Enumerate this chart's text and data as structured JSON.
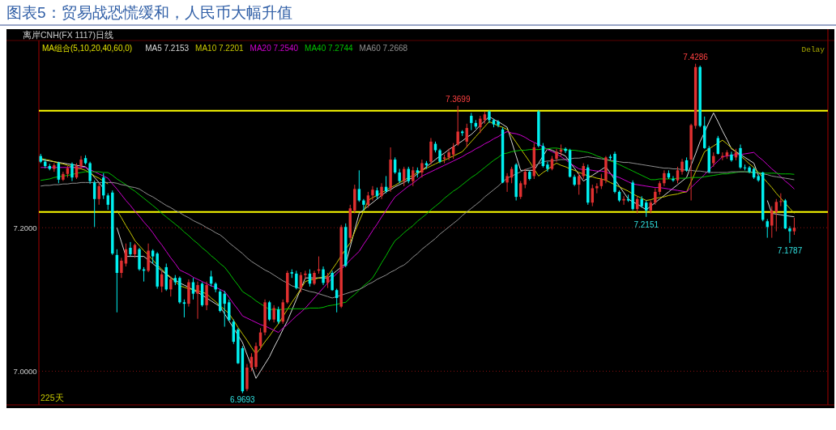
{
  "chart_data": {
    "type": "candlestick",
    "title": "图表5：贸易战恐慌缓和，人民币大幅升值",
    "subtitle": "离岸CNH(FX 1117)",
    "legend_title": "MA组合(5,10,20,40,60,0)",
    "annotations": [
      "日线",
      "Delay",
      "225天",
      {
        "text": "7.4286",
        "y": 7.4286
      },
      {
        "text": "7.3699",
        "y": 7.3699
      },
      {
        "text": "7.2151",
        "y": 7.2151
      },
      {
        "text": "7.1787",
        "y": 7.1787
      },
      {
        "text": "6.9693",
        "y": 6.9693
      }
    ],
    "ylim": [
      6.953,
      7.461
    ],
    "yticks": [
      {
        "value": 7.0,
        "label": "7.0000"
      },
      {
        "value": 7.2,
        "label": "7.2000"
      }
    ],
    "grid": "y",
    "tick_labels": "y",
    "ref_lines": [
      {
        "axis": "y",
        "value": 7.363,
        "color": "#ffff00"
      },
      {
        "axis": "y",
        "value": 7.222,
        "color": "#ffff00"
      }
    ],
    "categories": [
      null,
      null,
      null,
      null,
      null,
      null,
      null,
      null,
      null,
      null,
      null,
      null,
      null,
      null,
      null,
      null,
      null,
      null,
      null,
      null,
      null,
      null,
      null,
      null,
      null,
      null,
      null,
      null,
      null,
      null,
      null,
      null,
      null,
      null,
      null,
      null,
      null,
      null,
      null,
      null,
      null,
      null,
      null,
      null,
      null,
      null,
      null,
      null,
      null,
      null,
      null,
      null,
      null,
      null,
      null,
      null,
      null,
      null,
      null,
      null,
      null,
      null,
      null,
      null,
      null,
      null,
      null,
      null,
      null,
      null,
      null,
      null,
      null,
      null,
      null,
      null,
      null,
      null,
      null,
      null,
      null,
      null,
      null,
      null,
      null,
      null,
      null,
      null,
      null,
      null,
      null,
      null,
      null,
      null,
      null,
      null,
      null,
      null,
      null,
      null,
      null,
      null,
      null,
      null,
      null,
      null,
      null,
      null,
      null,
      null,
      null,
      null,
      null,
      null,
      null,
      null,
      null,
      null,
      null,
      null,
      null,
      null,
      null,
      null,
      null,
      null,
      null,
      null,
      null,
      null,
      null,
      null,
      null,
      null,
      null,
      null,
      null,
      null,
      null,
      null,
      null,
      null,
      null,
      null,
      null,
      null,
      null,
      null,
      null,
      null,
      null,
      null,
      null,
      null,
      null,
      null,
      null,
      null,
      null,
      null,
      null,
      null,
      null,
      null,
      null,
      null,
      null,
      null,
      null
    ],
    "ohlc": [
      [
        7.3,
        7.303,
        7.29,
        7.292
      ],
      [
        7.292,
        7.296,
        7.283,
        7.286
      ],
      [
        7.286,
        7.289,
        7.28,
        7.282
      ],
      [
        7.282,
        7.29,
        7.278,
        7.287
      ],
      [
        7.29,
        7.292,
        7.262,
        7.267
      ],
      [
        7.267,
        7.278,
        7.265,
        7.275
      ],
      [
        7.275,
        7.286,
        7.27,
        7.283
      ],
      [
        7.289,
        7.291,
        7.265,
        7.27
      ],
      [
        7.27,
        7.29,
        7.268,
        7.286
      ],
      [
        7.286,
        7.3,
        7.282,
        7.295
      ],
      [
        7.297,
        7.301,
        7.288,
        7.29
      ],
      [
        7.29,
        7.292,
        7.261,
        7.265
      ],
      [
        7.263,
        7.266,
        7.201,
        7.24
      ],
      [
        7.24,
        7.262,
        7.232,
        7.258
      ],
      [
        7.27,
        7.276,
        7.24,
        7.245
      ],
      [
        7.245,
        7.248,
        7.225,
        7.232
      ],
      [
        7.249,
        7.252,
        7.162,
        7.164
      ],
      [
        7.162,
        7.17,
        7.082,
        7.137
      ],
      [
        7.137,
        7.158,
        7.13,
        7.154
      ],
      [
        7.15,
        7.178,
        7.146,
        7.17
      ],
      [
        7.172,
        7.18,
        7.16,
        7.163
      ],
      [
        7.163,
        7.178,
        7.158,
        7.176
      ],
      [
        7.17,
        7.172,
        7.14,
        7.142
      ],
      [
        7.142,
        7.145,
        7.125,
        7.14
      ],
      [
        7.14,
        7.178,
        7.138,
        7.168
      ],
      [
        7.168,
        7.17,
        7.15,
        7.16
      ],
      [
        7.164,
        7.166,
        7.115,
        7.118
      ],
      [
        7.118,
        7.14,
        7.11,
        7.135
      ],
      [
        7.145,
        7.15,
        7.112,
        7.114
      ],
      [
        7.114,
        7.132,
        7.104,
        7.128
      ],
      [
        7.13,
        7.134,
        7.12,
        7.124
      ],
      [
        7.13,
        7.132,
        7.094,
        7.096
      ],
      [
        7.096,
        7.1,
        7.075,
        7.094
      ],
      [
        7.094,
        7.128,
        7.09,
        7.124
      ],
      [
        7.124,
        7.13,
        7.1,
        7.108
      ],
      [
        7.108,
        7.125,
        7.073,
        7.12
      ],
      [
        7.122,
        7.124,
        7.09,
        7.092
      ],
      [
        7.092,
        7.125,
        7.085,
        7.12
      ],
      [
        7.132,
        7.14,
        7.118,
        7.122
      ],
      [
        7.122,
        7.124,
        7.11,
        7.114
      ],
      [
        7.111,
        7.114,
        7.082,
        7.084
      ],
      [
        7.108,
        7.112,
        7.062,
        7.094
      ],
      [
        7.096,
        7.1,
        7.07,
        7.071
      ],
      [
        7.069,
        7.072,
        7.038,
        7.041
      ],
      [
        7.058,
        7.06,
        7.01,
        7.011
      ],
      [
        7.032,
        7.035,
        6.9693,
        6.972
      ],
      [
        6.975,
        7.01,
        6.972,
        7.005
      ],
      [
        7.005,
        7.025,
        7.0,
        7.02
      ],
      [
        7.006,
        7.04,
        7.003,
        7.035
      ],
      [
        7.035,
        7.06,
        7.03,
        7.054
      ],
      [
        7.054,
        7.1,
        7.05,
        7.096
      ],
      [
        7.096,
        7.098,
        7.07,
        7.072
      ],
      [
        7.072,
        7.092,
        7.068,
        7.088
      ],
      [
        7.086,
        7.09,
        7.066,
        7.069
      ],
      [
        7.069,
        7.1,
        7.066,
        7.096
      ],
      [
        7.096,
        7.14,
        7.094,
        7.137
      ],
      [
        7.138,
        7.142,
        7.13,
        7.136
      ],
      [
        7.136,
        7.14,
        7.114,
        7.116
      ],
      [
        7.116,
        7.138,
        7.11,
        7.134
      ],
      [
        7.134,
        7.14,
        7.128,
        7.136
      ],
      [
        7.136,
        7.142,
        7.118,
        7.122
      ],
      [
        7.122,
        7.14,
        7.12,
        7.137
      ],
      [
        7.14,
        7.16,
        7.136,
        7.142
      ],
      [
        7.142,
        7.146,
        7.12,
        7.123
      ],
      [
        7.123,
        7.137,
        7.116,
        7.132
      ],
      [
        7.137,
        7.14,
        7.112,
        7.113
      ],
      [
        7.113,
        7.115,
        7.082,
        7.102
      ],
      [
        7.09,
        7.204,
        7.088,
        7.201
      ],
      [
        7.201,
        7.206,
        7.145,
        7.147
      ],
      [
        7.186,
        7.232,
        7.18,
        7.227
      ],
      [
        7.224,
        7.26,
        7.22,
        7.254
      ],
      [
        7.254,
        7.28,
        7.236,
        7.238
      ],
      [
        7.238,
        7.24,
        7.224,
        7.232
      ],
      [
        7.232,
        7.25,
        7.228,
        7.245
      ],
      [
        7.245,
        7.258,
        7.238,
        7.253
      ],
      [
        7.252,
        7.256,
        7.24,
        7.244
      ],
      [
        7.244,
        7.262,
        7.24,
        7.257
      ],
      [
        7.257,
        7.272,
        7.248,
        7.251
      ],
      [
        7.255,
        7.312,
        7.25,
        7.295
      ],
      [
        7.295,
        7.298,
        7.275,
        7.277
      ],
      [
        7.277,
        7.282,
        7.262,
        7.265
      ],
      [
        7.265,
        7.285,
        7.258,
        7.282
      ],
      [
        7.282,
        7.285,
        7.262,
        7.265
      ],
      [
        7.265,
        7.285,
        7.258,
        7.28
      ],
      [
        7.28,
        7.284,
        7.27,
        7.277
      ],
      [
        7.277,
        7.295,
        7.27,
        7.29
      ],
      [
        7.29,
        7.293,
        7.282,
        7.287
      ],
      [
        7.292,
        7.325,
        7.288,
        7.32
      ],
      [
        7.317,
        7.32,
        7.305,
        7.308
      ],
      [
        7.308,
        7.31,
        7.29,
        7.292
      ],
      [
        7.296,
        7.302,
        7.29,
        7.298
      ],
      [
        7.298,
        7.31,
        7.294,
        7.305
      ],
      [
        7.302,
        7.318,
        7.296,
        7.313
      ],
      [
        7.316,
        7.3699,
        7.314,
        7.334
      ],
      [
        7.334,
        7.336,
        7.328,
        7.332
      ],
      [
        7.32,
        7.345,
        7.312,
        7.339
      ],
      [
        7.356,
        7.36,
        7.336,
        7.346
      ],
      [
        7.346,
        7.35,
        7.338,
        7.341
      ],
      [
        7.34,
        7.356,
        7.332,
        7.352
      ],
      [
        7.35,
        7.362,
        7.345,
        7.358
      ],
      [
        7.362,
        7.364,
        7.346,
        7.35
      ],
      [
        7.35,
        7.352,
        7.34,
        7.344
      ],
      [
        7.348,
        7.35,
        7.34,
        7.343
      ],
      [
        7.337,
        7.34,
        7.262,
        7.263
      ],
      [
        7.263,
        7.276,
        7.25,
        7.272
      ],
      [
        7.27,
        7.285,
        7.262,
        7.282
      ],
      [
        7.288,
        7.29,
        7.238,
        7.243
      ],
      [
        7.243,
        7.265,
        7.24,
        7.262
      ],
      [
        7.26,
        7.282,
        7.255,
        7.278
      ],
      [
        7.278,
        7.28,
        7.266,
        7.268
      ],
      [
        7.272,
        7.318,
        7.268,
        7.312
      ],
      [
        7.362,
        7.364,
        7.312,
        7.314
      ],
      [
        7.314,
        7.318,
        7.284,
        7.286
      ],
      [
        7.288,
        7.292,
        7.278,
        7.282
      ],
      [
        7.282,
        7.3,
        7.28,
        7.296
      ],
      [
        7.296,
        7.31,
        7.292,
        7.306
      ],
      [
        7.306,
        7.316,
        7.3,
        7.309
      ],
      [
        7.31,
        7.312,
        7.304,
        7.307
      ],
      [
        7.308,
        7.31,
        7.27,
        7.271
      ],
      [
        7.271,
        7.274,
        7.258,
        7.26
      ],
      [
        7.26,
        7.276,
        7.246,
        7.272
      ],
      [
        7.272,
        7.29,
        7.268,
        7.286
      ],
      [
        7.284,
        7.288,
        7.232,
        7.235
      ],
      [
        7.235,
        7.26,
        7.23,
        7.255
      ],
      [
        7.255,
        7.262,
        7.248,
        7.258
      ],
      [
        7.258,
        7.275,
        7.254,
        7.268
      ],
      [
        7.266,
        7.3,
        7.262,
        7.298
      ],
      [
        7.299,
        7.302,
        7.294,
        7.297
      ],
      [
        7.303,
        7.306,
        7.248,
        7.25
      ],
      [
        7.25,
        7.252,
        7.236,
        7.238
      ],
      [
        7.238,
        7.244,
        7.232,
        7.24
      ],
      [
        7.24,
        7.246,
        7.236,
        7.238
      ],
      [
        7.263,
        7.266,
        7.224,
        7.226
      ],
      [
        7.226,
        7.244,
        7.22,
        7.24
      ],
      [
        7.24,
        7.244,
        7.228,
        7.23
      ],
      [
        7.235,
        7.238,
        7.2151,
        7.224
      ],
      [
        7.224,
        7.238,
        7.22,
        7.235
      ],
      [
        7.235,
        7.255,
        7.232,
        7.25
      ],
      [
        7.25,
        7.265,
        7.246,
        7.262
      ],
      [
        7.262,
        7.28,
        7.258,
        7.276
      ],
      [
        7.276,
        7.28,
        7.268,
        7.27
      ],
      [
        7.268,
        7.272,
        7.264,
        7.266
      ],
      [
        7.266,
        7.285,
        7.262,
        7.28
      ],
      [
        7.278,
        7.296,
        7.274,
        7.292
      ],
      [
        7.294,
        7.298,
        7.278,
        7.28
      ],
      [
        7.295,
        7.345,
        7.238,
        7.343
      ],
      [
        7.342,
        7.4286,
        7.338,
        7.424
      ],
      [
        7.424,
        7.426,
        7.34,
        7.342
      ],
      [
        7.342,
        7.355,
        7.31,
        7.311
      ],
      [
        7.311,
        7.314,
        7.276,
        7.278
      ],
      [
        7.29,
        7.305,
        7.285,
        7.3
      ],
      [
        7.325,
        7.328,
        7.302,
        7.303
      ],
      [
        7.298,
        7.305,
        7.294,
        7.3
      ],
      [
        7.3,
        7.308,
        7.296,
        7.305
      ],
      [
        7.302,
        7.306,
        7.292,
        7.294
      ],
      [
        7.298,
        7.31,
        7.294,
        7.305
      ],
      [
        7.311,
        7.316,
        7.282,
        7.284
      ],
      [
        7.284,
        7.288,
        7.28,
        7.283
      ],
      [
        7.284,
        7.286,
        7.276,
        7.278
      ],
      [
        7.282,
        7.284,
        7.268,
        7.27
      ],
      [
        7.272,
        7.274,
        7.264,
        7.266
      ],
      [
        7.277,
        7.278,
        7.209,
        7.211
      ],
      [
        7.209,
        7.212,
        7.186,
        7.201
      ],
      [
        7.203,
        7.23,
        7.186,
        7.224
      ],
      [
        7.222,
        7.24,
        7.195,
        7.236
      ],
      [
        7.236,
        7.248,
        7.23,
        7.237
      ],
      [
        7.238,
        7.24,
        7.198,
        7.199
      ],
      [
        7.199,
        7.202,
        7.1787,
        7.195
      ],
      [
        7.195,
        7.214,
        7.19,
        7.2
      ]
    ],
    "series": [
      {
        "type": "line",
        "name": "MA5 7.2153",
        "color": "#d8d8d8",
        "values": [
          7.295,
          7.294,
          7.293,
          7.292,
          7.291,
          7.29,
          7.289,
          7.288,
          7.287,
          7.286,
          7.285,
          7.278,
          7.27,
          7.263,
          7.255,
          null,
          null,
          7.2,
          7.18,
          7.16,
          7.16,
          7.16,
          7.16,
          7.16,
          7.155,
          7.15,
          7.145,
          7.14,
          7.135,
          7.13,
          7.127,
          7.123,
          7.12,
          7.117,
          7.113,
          7.11,
          7.106,
          7.102,
          7.098,
          7.094,
          7.09,
          7.08,
          7.07,
          7.06,
          7.05,
          7.04,
          7.023,
          7.007,
          6.99,
          7.0,
          7.01,
          7.02,
          7.033,
          7.045,
          7.058,
          7.07,
          7.085,
          7.1,
          7.115,
          7.13,
          7.13,
          7.13,
          7.13,
          7.13,
          7.13,
          7.135,
          7.14,
          7.145,
          7.15,
          7.173,
          7.197,
          7.22,
          7.225,
          7.23,
          7.235,
          7.24,
          7.245,
          7.25,
          7.253,
          7.257,
          7.26,
          7.263,
          7.267,
          7.27,
          7.275,
          7.28,
          7.285,
          7.29,
          7.295,
          7.3,
          7.304,
          7.309,
          7.313,
          7.317,
          7.321,
          7.326,
          7.33,
          7.336,
          7.343,
          7.349,
          7.355,
          7.351,
          7.348,
          7.344,
          7.34,
          7.32,
          7.3,
          7.28,
          7.28,
          7.28,
          7.28,
          7.29,
          7.3,
          7.31,
          7.308,
          7.305,
          7.303,
          7.3,
          7.291,
          7.283,
          7.274,
          7.265,
          7.269,
          7.273,
          7.277,
          7.281,
          7.285,
          7.276,
          7.267,
          7.258,
          7.249,
          7.24,
          7.236,
          7.233,
          7.229,
          7.225,
          7.23,
          7.235,
          7.24,
          7.245,
          7.25,
          7.255,
          7.26,
          7.265,
          7.27,
          7.287,
          7.303,
          7.32,
          7.333,
          7.347,
          7.36,
          7.348,
          7.335,
          7.323,
          7.31,
          7.306,
          7.302,
          7.298,
          7.294,
          7.29,
          7.273,
          null,
          7.238,
          7.22,
          7.219,
          7.218,
          7.217,
          7.216,
          7.2153
        ]
      },
      {
        "type": "line",
        "name": "MA10 7.2201",
        "color": "#c8c800",
        "values": [
          7.297,
          7.295,
          7.294,
          7.292,
          7.29,
          7.289,
          7.287,
          7.285,
          7.283,
          7.282,
          7.28,
          7.276,
          7.272,
          7.269,
          7.265,
          7.261,
          null,
          7.224,
          7.214,
          7.203,
          7.193,
          7.182,
          7.175,
          7.168,
          7.162,
          7.155,
          7.148,
          7.142,
          7.136,
          7.131,
          7.125,
          7.119,
          7.117,
          7.115,
          7.114,
          7.112,
          7.11,
          7.108,
          7.102,
          7.097,
          7.091,
          7.086,
          7.08,
          7.071,
          7.061,
          7.052,
          7.043,
          7.033,
          7.024,
          7.032,
          7.041,
          7.049,
          7.058,
          7.066,
          7.076,
          7.086,
          7.096,
          7.105,
          7.115,
          7.125,
          7.127,
          7.128,
          7.13,
          7.131,
          7.133,
          7.142,
          7.151,
          7.161,
          7.17,
          7.179,
          7.194,
          7.209,
          7.223,
          7.238,
          7.242,
          7.245,
          7.249,
          7.252,
          7.256,
          7.259,
          7.263,
          7.266,
          7.27,
          7.273,
          7.277,
          7.28,
          7.283,
          7.286,
          7.289,
          7.292,
          7.294,
          7.297,
          7.3,
          7.303,
          7.306,
          7.313,
          7.32,
          7.327,
          7.334,
          7.341,
          7.348,
          7.345,
          7.342,
          7.34,
          7.337,
          7.328,
          7.319,
          7.31,
          7.301,
          7.292,
          7.282,
          7.272,
          7.277,
          7.281,
          7.286,
          7.29,
          7.287,
          7.285,
          7.282,
          7.28,
          7.277,
          7.275,
          7.272,
          7.271,
          7.269,
          7.268,
          7.266,
          7.263,
          7.26,
          7.257,
          7.254,
          7.251,
          7.247,
          7.244,
          7.241,
          7.238,
          7.239,
          7.241,
          7.242,
          7.243,
          7.245,
          7.246,
          7.247,
          7.249,
          7.25,
          7.264,
          7.278,
          7.292,
          7.306,
          7.31,
          7.314,
          7.318,
          7.322,
          7.317,
          7.311,
          7.306,
          7.3,
          7.295,
          7.289,
          7.284,
          7.277,
          7.27,
          7.263,
          7.256,
          7.248,
          7.241,
          7.234,
          7.227,
          7.2201
        ]
      },
      {
        "type": "line",
        "name": "MA20 7.2540",
        "color": "#d000d0",
        "values": [
          7.284,
          7.284,
          7.284,
          7.284,
          7.284,
          7.284,
          7.284,
          7.284,
          7.284,
          7.284,
          7.284,
          7.281,
          7.278,
          7.275,
          7.272,
          7.269,
          7.261,
          7.254,
          7.246,
          7.238,
          7.231,
          7.223,
          7.216,
          7.208,
          7.201,
          7.193,
          7.184,
          7.176,
          7.167,
          7.158,
          7.15,
          7.141,
          7.138,
          7.135,
          7.131,
          7.128,
          7.125,
          7.122,
          7.119,
          7.117,
          7.114,
          7.111,
          7.103,
          7.094,
          7.086,
          7.077,
          7.074,
          7.071,
          7.068,
          7.065,
          7.063,
          7.06,
          7.057,
          7.054,
          7.06,
          7.065,
          7.071,
          7.077,
          7.082,
          7.088,
          7.095,
          7.102,
          7.109,
          7.116,
          7.123,
          7.13,
          7.136,
          7.142,
          7.148,
          7.155,
          7.161,
          7.167,
          7.177,
          7.186,
          7.196,
          7.205,
          7.215,
          7.224,
          7.234,
          7.243,
          7.248,
          7.253,
          7.258,
          7.262,
          7.267,
          7.272,
          7.275,
          7.278,
          7.281,
          7.284,
          7.287,
          7.29,
          7.293,
          7.296,
          7.299,
          7.303,
          7.306,
          7.31,
          7.313,
          7.317,
          7.32,
          7.324,
          7.327,
          7.331,
          7.334,
          7.332,
          7.331,
          7.329,
          7.326,
          7.322,
          7.319,
          7.316,
          7.313,
          7.309,
          7.306,
          7.303,
          7.299,
          7.295,
          7.29,
          7.286,
          7.282,
          7.281,
          7.281,
          7.28,
          7.279,
          7.279,
          7.278,
          7.275,
          7.272,
          7.27,
          7.267,
          7.264,
          7.261,
          7.26,
          7.259,
          7.258,
          7.257,
          7.256,
          7.256,
          7.255,
          7.254,
          7.253,
          7.252,
          7.251,
          7.25,
          7.256,
          7.262,
          7.268,
          7.274,
          7.281,
          7.287,
          7.293,
          7.299,
          7.3,
          7.301,
          7.302,
          7.302,
          7.303,
          7.304,
          7.305,
          7.299,
          7.294,
          7.288,
          7.282,
          7.277,
          7.271,
          7.265,
          7.26,
          7.254
        ]
      },
      {
        "type": "line",
        "name": "MA40 7.2744",
        "color": "#00c000",
        "values": [
          7.266,
          7.267,
          7.268,
          7.27,
          7.271,
          7.272,
          7.273,
          7.274,
          7.276,
          7.277,
          7.278,
          7.278,
          7.278,
          7.278,
          7.277,
          7.277,
          7.273,
          7.268,
          7.264,
          7.26,
          7.255,
          7.251,
          7.246,
          7.241,
          7.236,
          7.231,
          7.226,
          7.22,
          7.215,
          7.21,
          7.205,
          7.2,
          7.194,
          7.189,
          7.183,
          7.178,
          7.172,
          7.167,
          7.161,
          7.156,
          7.15,
          7.145,
          7.137,
          7.128,
          7.12,
          7.111,
          7.107,
          7.103,
          7.098,
          7.094,
          7.09,
          7.086,
          7.086,
          7.086,
          7.086,
          7.087,
          7.087,
          7.087,
          7.087,
          7.087,
          7.088,
          7.088,
          7.088,
          7.089,
          7.091,
          7.092,
          7.093,
          7.095,
          7.096,
          7.102,
          7.107,
          7.113,
          7.119,
          7.124,
          7.13,
          7.14,
          7.151,
          7.161,
          7.172,
          7.182,
          7.187,
          7.193,
          7.198,
          7.203,
          7.209,
          7.214,
          7.219,
          7.225,
          7.23,
          7.235,
          7.241,
          7.246,
          7.251,
          7.255,
          7.26,
          7.265,
          7.27,
          7.274,
          7.279,
          7.284,
          7.289,
          7.294,
          7.298,
          7.303,
          7.304,
          7.306,
          7.307,
          7.308,
          7.308,
          7.309,
          7.309,
          7.309,
          7.31,
          7.31,
          7.311,
          7.311,
          7.31,
          7.309,
          7.308,
          7.308,
          7.307,
          7.306,
          7.305,
          7.303,
          7.3,
          7.298,
          7.295,
          7.293,
          7.291,
          7.288,
          7.285,
          7.282,
          7.279,
          7.276,
          7.273,
          7.27,
          7.267,
          7.267,
          7.268,
          7.268,
          7.268,
          7.268,
          7.269,
          7.269,
          7.269,
          7.27,
          7.27,
          7.27,
          7.271,
          7.272,
          7.273,
          7.274,
          7.275,
          7.275,
          7.276,
          7.277,
          7.278,
          7.278,
          7.277,
          7.277,
          7.277,
          7.276,
          7.276,
          7.276,
          7.276,
          7.275,
          7.275,
          7.275,
          7.2744
        ]
      },
      {
        "type": "line",
        "name": "MA60 7.2668",
        "color": "#909090",
        "values": [
          7.258,
          7.259,
          7.259,
          7.26,
          7.26,
          7.261,
          7.261,
          7.262,
          7.262,
          7.263,
          7.263,
          7.263,
          7.263,
          7.263,
          7.263,
          7.263,
          7.263,
          7.262,
          7.26,
          7.259,
          7.257,
          7.256,
          7.254,
          7.25,
          7.246,
          7.243,
          7.239,
          7.235,
          7.231,
          7.228,
          7.224,
          7.221,
          7.217,
          7.214,
          7.21,
          7.207,
          7.204,
          7.2,
          7.197,
          7.193,
          7.19,
          7.185,
          7.179,
          7.174,
          7.169,
          7.164,
          7.158,
          7.153,
          7.149,
          7.145,
          7.141,
          7.138,
          7.134,
          7.13,
          7.126,
          7.123,
          7.119,
          7.117,
          7.115,
          7.113,
          7.111,
          7.11,
          7.108,
          7.106,
          7.104,
          7.102,
          7.104,
          7.106,
          7.108,
          7.11,
          7.112,
          7.114,
          7.117,
          7.121,
          7.124,
          7.128,
          7.131,
          7.134,
          7.138,
          7.141,
          7.145,
          7.148,
          7.153,
          7.159,
          7.164,
          7.17,
          7.175,
          7.18,
          7.185,
          7.191,
          7.196,
          7.201,
          7.206,
          7.211,
          7.217,
          7.222,
          7.227,
          7.232,
          7.237,
          7.243,
          7.248,
          7.253,
          7.258,
          7.264,
          7.269,
          7.272,
          7.275,
          7.278,
          7.281,
          7.283,
          7.286,
          7.289,
          7.292,
          7.293,
          7.293,
          7.294,
          7.295,
          7.295,
          7.296,
          7.297,
          7.297,
          7.298,
          7.299,
          7.298,
          7.297,
          7.296,
          7.295,
          7.294,
          7.293,
          7.292,
          7.291,
          7.291,
          7.29,
          7.289,
          7.288,
          7.287,
          7.286,
          7.285,
          7.284,
          7.283,
          7.283,
          7.282,
          7.282,
          7.281,
          7.28,
          7.28,
          7.279,
          7.279,
          7.278,
          7.277,
          7.277,
          7.277,
          7.277,
          7.277,
          7.278,
          7.278,
          7.278,
          7.278,
          7.278,
          7.277,
          7.276,
          7.275,
          7.274,
          7.272,
          7.271,
          7.27,
          7.269,
          7.268,
          7.2668
        ]
      }
    ]
  }
}
